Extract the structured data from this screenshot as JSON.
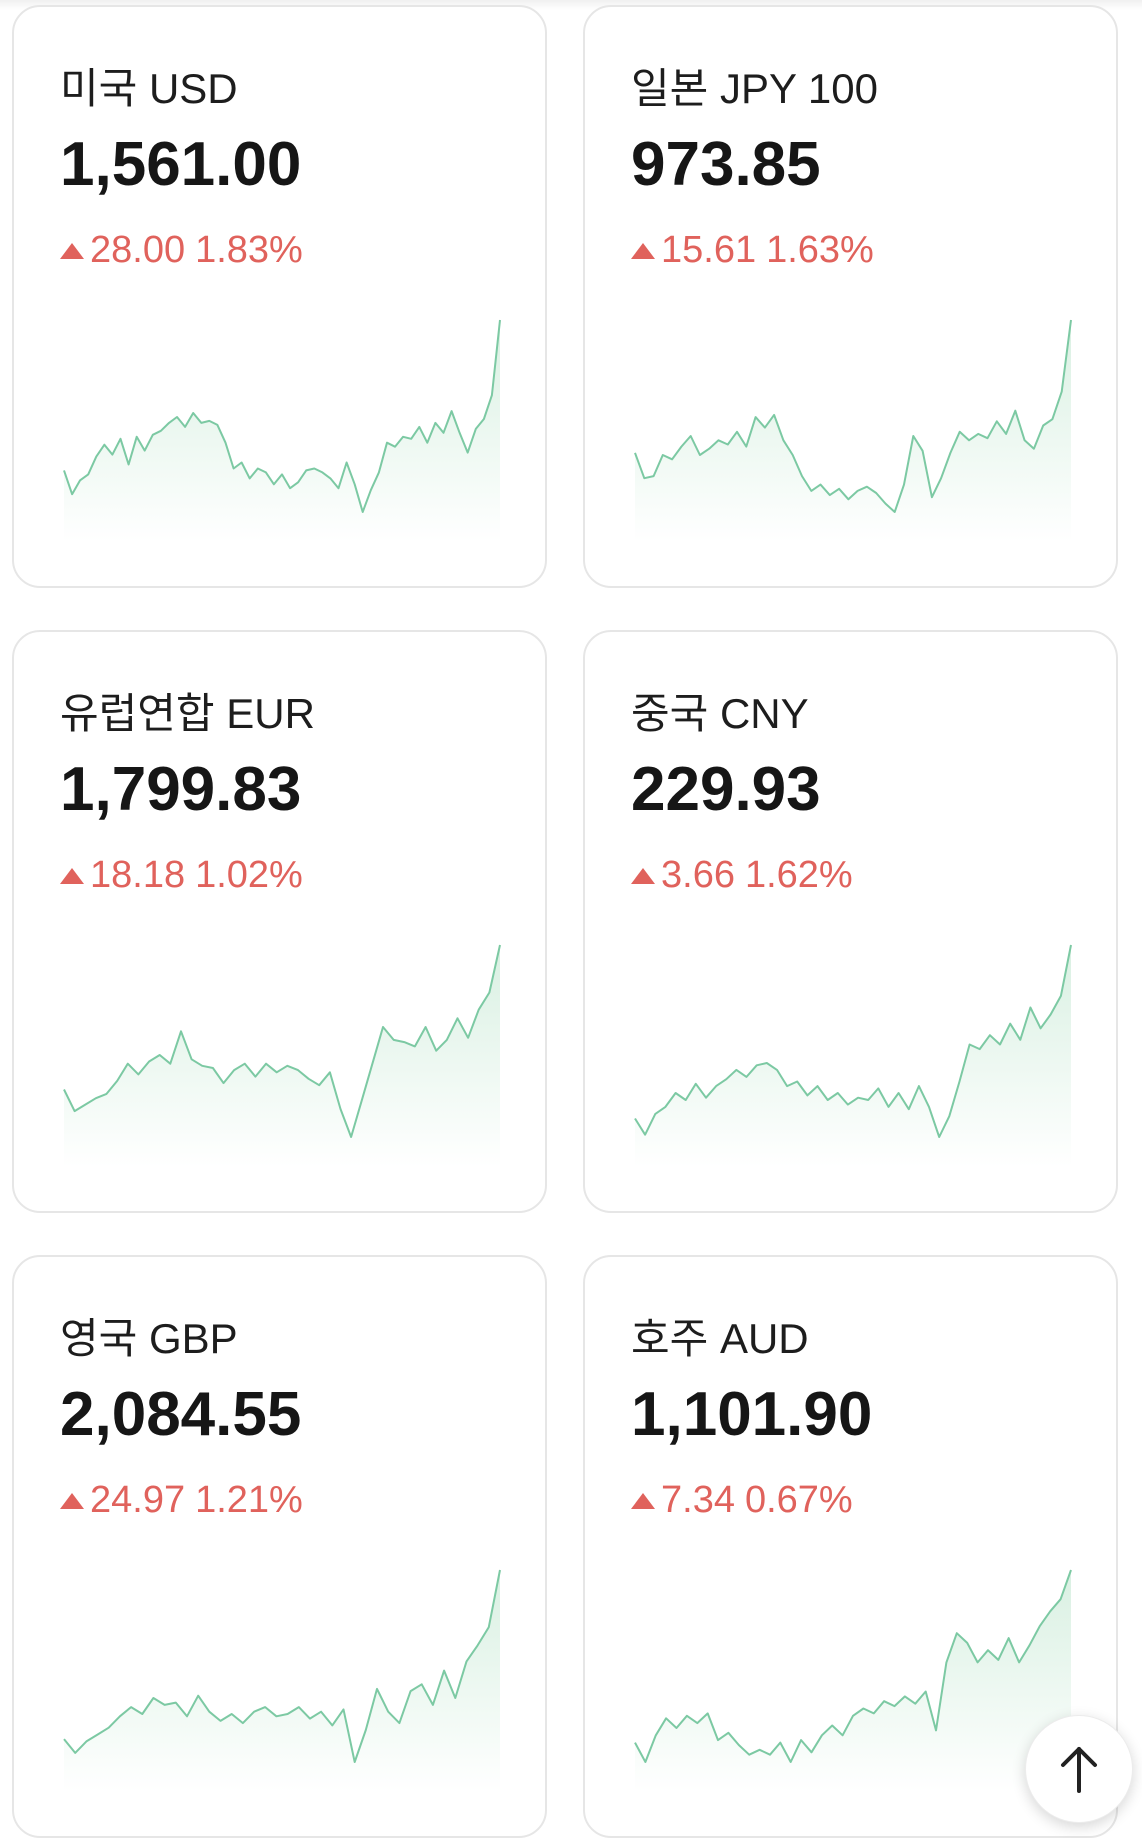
{
  "currencies": [
    {
      "name": "미국 USD",
      "price": "1,561.00",
      "change": "28.00",
      "percent": "1.83%",
      "direction": "up",
      "trend": [
        1.2,
        0.0,
        0.7,
        1.0,
        1.9,
        2.5,
        2.0,
        2.8,
        1.5,
        2.9,
        2.2,
        3.0,
        3.2,
        3.6,
        3.9,
        3.4,
        4.1,
        3.6,
        3.7,
        3.5,
        2.6,
        1.3,
        1.6,
        0.8,
        1.3,
        1.1,
        0.5,
        1.0,
        0.3,
        0.6,
        1.2,
        1.3,
        1.1,
        0.8,
        0.3,
        1.6,
        0.5,
        -0.9,
        0.2,
        1.1,
        2.6,
        2.4,
        2.9,
        2.8,
        3.4,
        2.6,
        3.6,
        3.1,
        4.2,
        3.1,
        2.1,
        3.3,
        3.8,
        5.0,
        8.8
      ]
    },
    {
      "name": "일본 JPY 100",
      "price": "973.85",
      "change": "15.61",
      "percent": "1.63%",
      "direction": "up",
      "trend": [
        2.6,
        1.4,
        1.5,
        2.5,
        2.3,
        2.9,
        3.4,
        2.5,
        2.8,
        3.2,
        3.0,
        3.6,
        2.9,
        4.3,
        3.8,
        4.4,
        3.2,
        2.5,
        1.5,
        0.8,
        1.1,
        0.6,
        0.9,
        0.4,
        0.8,
        1.0,
        0.7,
        0.2,
        -0.2,
        1.1,
        3.4,
        2.7,
        0.5,
        1.4,
        2.6,
        3.6,
        3.2,
        3.5,
        3.3,
        4.1,
        3.5,
        4.6,
        3.2,
        2.8,
        3.9,
        4.2,
        5.5,
        8.9
      ]
    },
    {
      "name": "유럽연합 EUR",
      "price": "1,799.83",
      "change": "18.18",
      "percent": "1.02%",
      "direction": "up",
      "trend": [
        1.8,
        0.8,
        1.1,
        1.4,
        1.6,
        2.2,
        3.0,
        2.5,
        3.1,
        3.4,
        3.0,
        4.5,
        3.2,
        2.9,
        2.8,
        2.1,
        2.7,
        3.0,
        2.4,
        3.0,
        2.6,
        2.9,
        2.7,
        2.3,
        2.0,
        2.6,
        0.9,
        -0.4,
        1.3,
        3.0,
        4.7,
        4.1,
        4.0,
        3.8,
        4.7,
        3.6,
        4.1,
        5.1,
        4.2,
        5.5,
        6.3,
        8.5
      ]
    },
    {
      "name": "중국 CNY",
      "price": "229.93",
      "change": "3.66",
      "percent": "1.62%",
      "direction": "up",
      "trend": [
        1.0,
        0.3,
        1.2,
        1.5,
        2.1,
        1.8,
        2.5,
        1.9,
        2.4,
        2.7,
        3.1,
        2.8,
        3.3,
        3.4,
        3.1,
        2.4,
        2.6,
        2.0,
        2.4,
        1.8,
        2.1,
        1.6,
        1.9,
        1.8,
        2.3,
        1.5,
        2.1,
        1.4,
        2.4,
        1.5,
        0.2,
        1.1,
        2.6,
        4.2,
        4.0,
        4.6,
        4.2,
        5.1,
        4.4,
        5.8,
        4.9,
        5.5,
        6.3,
        8.5
      ]
    },
    {
      "name": "영국 GBP",
      "price": "2,084.55",
      "change": "24.97",
      "percent": "1.21%",
      "direction": "up",
      "trend": [
        1.4,
        0.8,
        1.3,
        1.6,
        1.9,
        2.4,
        2.8,
        2.5,
        3.2,
        2.9,
        3.0,
        2.4,
        3.3,
        2.6,
        2.2,
        2.5,
        2.1,
        2.6,
        2.8,
        2.4,
        2.5,
        2.8,
        2.3,
        2.6,
        2.0,
        2.7,
        0.4,
        1.8,
        3.6,
        2.6,
        2.1,
        3.5,
        3.8,
        2.9,
        4.4,
        3.2,
        4.8,
        5.5,
        6.3,
        8.8
      ]
    },
    {
      "name": "호주 AUD",
      "price": "1,101.90",
      "change": "7.34",
      "percent": "0.67%",
      "direction": "up",
      "trend": [
        1.3,
        0.5,
        1.6,
        2.3,
        1.9,
        2.4,
        2.1,
        2.5,
        1.4,
        1.7,
        1.2,
        0.8,
        1.0,
        0.8,
        1.3,
        0.5,
        1.4,
        0.9,
        1.6,
        2.0,
        1.6,
        2.4,
        2.7,
        2.5,
        3.0,
        2.8,
        3.2,
        2.9,
        3.4,
        1.8,
        4.6,
        5.8,
        5.4,
        4.6,
        5.1,
        4.7,
        5.6,
        4.6,
        5.3,
        6.1,
        6.7,
        7.2,
        8.4
      ]
    }
  ],
  "colors": {
    "up": "#e0625c",
    "line": "#7cc9a3",
    "fill_top": "#d9f0e2",
    "fill_bottom": "#ffffff"
  },
  "fab": {
    "icon": "arrow-up-icon"
  }
}
